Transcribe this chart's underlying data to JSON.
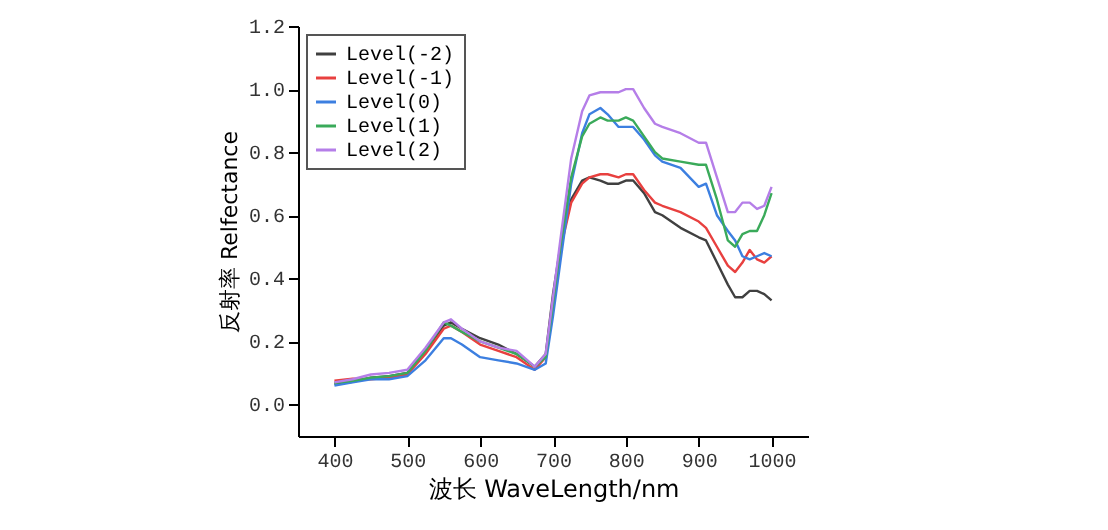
{
  "chart_data": {
    "type": "line",
    "xlabel": "波长 WaveLength/nm",
    "ylabel": "反射率 Relfectance",
    "x": [
      400,
      425,
      450,
      475,
      500,
      525,
      550,
      560,
      575,
      600,
      625,
      650,
      675,
      690,
      700,
      710,
      725,
      740,
      750,
      765,
      775,
      790,
      800,
      810,
      825,
      840,
      850,
      875,
      900,
      910,
      925,
      940,
      950,
      960,
      970,
      980,
      990,
      1000
    ],
    "series": [
      {
        "name": "Level(-2)",
        "color": "#404040",
        "values": [
          0.065,
          0.072,
          0.085,
          0.09,
          0.1,
          0.17,
          0.25,
          0.26,
          0.24,
          0.21,
          0.19,
          0.16,
          0.12,
          0.16,
          0.35,
          0.5,
          0.65,
          0.71,
          0.72,
          0.71,
          0.7,
          0.7,
          0.71,
          0.71,
          0.67,
          0.61,
          0.6,
          0.56,
          0.53,
          0.52,
          0.45,
          0.38,
          0.34,
          0.34,
          0.36,
          0.36,
          0.35,
          0.33
        ]
      },
      {
        "name": "Level(-1)",
        "color": "#e8403f",
        "values": [
          0.075,
          0.082,
          0.08,
          0.085,
          0.095,
          0.16,
          0.24,
          0.25,
          0.23,
          0.19,
          0.17,
          0.15,
          0.11,
          0.15,
          0.33,
          0.49,
          0.64,
          0.7,
          0.72,
          0.73,
          0.73,
          0.72,
          0.73,
          0.73,
          0.68,
          0.64,
          0.63,
          0.61,
          0.58,
          0.56,
          0.5,
          0.44,
          0.42,
          0.45,
          0.49,
          0.46,
          0.45,
          0.47
        ]
      },
      {
        "name": "Level(0)",
        "color": "#3c7fe0",
        "values": [
          0.06,
          0.07,
          0.08,
          0.08,
          0.09,
          0.14,
          0.21,
          0.21,
          0.19,
          0.15,
          0.14,
          0.13,
          0.11,
          0.13,
          0.28,
          0.45,
          0.7,
          0.86,
          0.92,
          0.94,
          0.92,
          0.88,
          0.88,
          0.88,
          0.84,
          0.79,
          0.77,
          0.75,
          0.69,
          0.7,
          0.6,
          0.55,
          0.52,
          0.47,
          0.46,
          0.47,
          0.48,
          0.47
        ]
      },
      {
        "name": "Level(1)",
        "color": "#3aaa5a",
        "values": [
          0.068,
          0.075,
          0.085,
          0.09,
          0.1,
          0.17,
          0.26,
          0.25,
          0.23,
          0.2,
          0.18,
          0.16,
          0.12,
          0.15,
          0.32,
          0.5,
          0.72,
          0.85,
          0.89,
          0.91,
          0.9,
          0.9,
          0.91,
          0.9,
          0.85,
          0.8,
          0.78,
          0.77,
          0.76,
          0.76,
          0.65,
          0.52,
          0.5,
          0.54,
          0.55,
          0.55,
          0.6,
          0.67
        ]
      },
      {
        "name": "Level(2)",
        "color": "#b57ee8",
        "values": [
          0.07,
          0.08,
          0.095,
          0.1,
          0.11,
          0.18,
          0.26,
          0.27,
          0.24,
          0.2,
          0.18,
          0.17,
          0.12,
          0.16,
          0.34,
          0.52,
          0.78,
          0.93,
          0.98,
          0.99,
          0.99,
          0.99,
          1.0,
          1.0,
          0.94,
          0.89,
          0.88,
          0.86,
          0.83,
          0.83,
          0.72,
          0.61,
          0.61,
          0.64,
          0.64,
          0.62,
          0.63,
          0.69
        ]
      }
    ],
    "xlim": [
      350,
      1050
    ],
    "xticks": [
      400,
      500,
      600,
      700,
      800,
      900,
      1000
    ],
    "ylim": [
      -0.1,
      1.2
    ],
    "yticks": [
      {
        "value": 0,
        "label": "0.0"
      },
      {
        "value": 0.2,
        "label": "0.2"
      },
      {
        "value": 0.4,
        "label": "0.4"
      },
      {
        "value": 0.6,
        "label": "0.6"
      },
      {
        "value": 0.8,
        "label": "0.8"
      },
      {
        "value": 1.0,
        "label": "1.0"
      },
      {
        "value": 1.2,
        "label": "1.2"
      }
    ],
    "grid": false,
    "legend": "top left",
    "marker": "none",
    "line_style": "solid"
  }
}
